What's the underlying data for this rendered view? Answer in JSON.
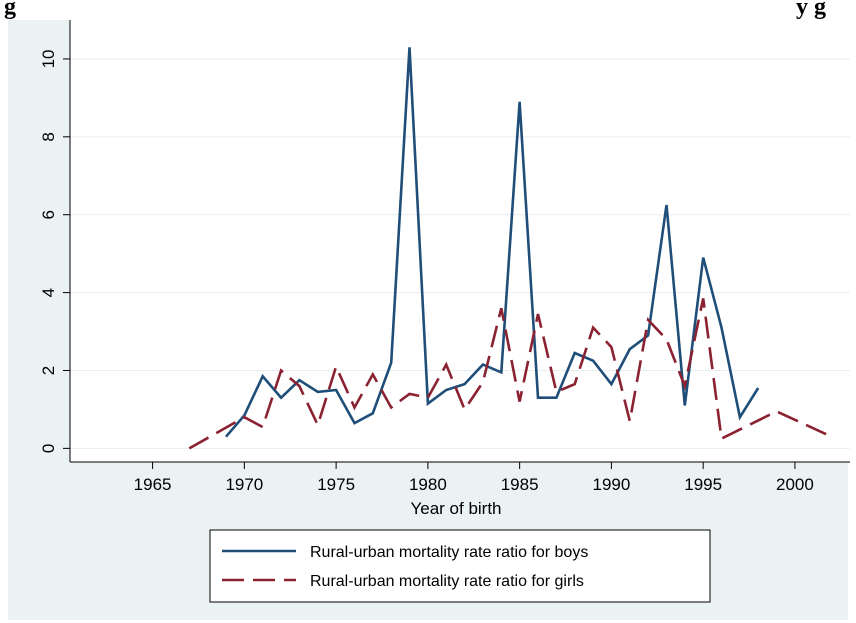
{
  "figure": {
    "header_fragment_left": "g",
    "header_fragment_right": "y g"
  },
  "chart_data": {
    "type": "line",
    "title": "",
    "xlabel": "Year of birth",
    "ylabel": "",
    "xlim": [
      1960.5,
      2003
    ],
    "ylim": [
      -0.35,
      11
    ],
    "xticks": [
      1965,
      1970,
      1975,
      1980,
      1985,
      1990,
      1995,
      2000
    ],
    "yticks": [
      0,
      2,
      4,
      6,
      8,
      10
    ],
    "grid": "horizontal",
    "legend_placement": "bottom",
    "series": [
      {
        "name": "Rural-urban mortality rate ratio for boys",
        "color": "#1f4e79",
        "dash": "solid",
        "x": [
          1969,
          1970,
          1971,
          1972,
          1973,
          1974,
          1975,
          1976,
          1977,
          1978,
          1979,
          1980,
          1981,
          1982,
          1983,
          1984,
          1985,
          1986,
          1987,
          1988,
          1989,
          1990,
          1991,
          1992,
          1993,
          1994,
          1995,
          1996,
          1997,
          1998
        ],
        "y": [
          0.3,
          0.85,
          1.85,
          1.3,
          1.75,
          1.45,
          1.5,
          0.65,
          0.9,
          2.2,
          10.3,
          1.15,
          1.5,
          1.65,
          2.15,
          1.95,
          8.9,
          1.3,
          1.3,
          2.45,
          2.25,
          1.65,
          2.55,
          2.9,
          6.25,
          1.1,
          4.9,
          3.1,
          0.8,
          1.55
        ]
      },
      {
        "name": "Rural-urban mortality rate ratio for girls",
        "color": "#8b2232",
        "dash": "long-dash",
        "x": [
          1967,
          1970,
          1971,
          1972,
          1973,
          1974,
          1975,
          1976,
          1977,
          1978,
          1979,
          1980,
          1981,
          1982,
          1983,
          1984,
          1985,
          1986,
          1987,
          1988,
          1989,
          1990,
          1991,
          1992,
          1993,
          1994,
          1995,
          1996,
          1999,
          2002
        ],
        "y": [
          0.0,
          0.8,
          0.55,
          2.0,
          1.6,
          0.6,
          2.1,
          1.05,
          1.9,
          1.05,
          1.4,
          1.3,
          2.15,
          1.0,
          1.7,
          3.6,
          1.2,
          3.45,
          1.45,
          1.65,
          3.1,
          2.6,
          0.7,
          3.3,
          2.8,
          1.6,
          3.85,
          0.25,
          0.95,
          0.3
        ]
      }
    ]
  }
}
